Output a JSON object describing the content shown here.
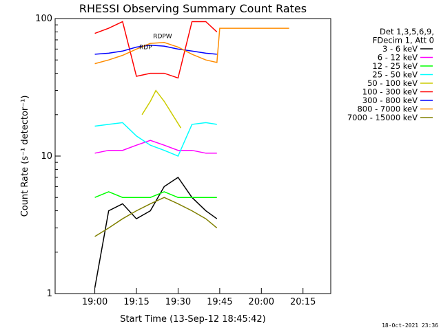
{
  "chart_data": {
    "type": "line",
    "title": "RHESSI Observing Summary Count Rates",
    "xlabel": "Start Time (13-Sep-12 18:45:42)",
    "ylabel": "Count Rate (s⁻¹ detector⁻¹)",
    "y_scale": "log",
    "ylim": [
      1,
      100
    ],
    "xlim": [
      "18:45:42",
      "20:25:00"
    ],
    "y_ticks": [
      {
        "value": 1,
        "label": "1"
      },
      {
        "value": 10,
        "label": "10"
      },
      {
        "value": 100,
        "label": "100"
      }
    ],
    "x_ticks": [
      {
        "value": "19:00",
        "label": "19:00"
      },
      {
        "value": "19:15",
        "label": "19:15"
      },
      {
        "value": "19:30",
        "label": "19:30"
      },
      {
        "value": "19:45",
        "label": "19:45"
      },
      {
        "value": "20:00",
        "label": "20:00"
      },
      {
        "value": "20:15",
        "label": "20:15"
      }
    ],
    "legend_header": [
      "Det 1,3,5,6,9,",
      "FDecim 1, Att 0"
    ],
    "legend_position": "right",
    "series": [
      {
        "name": "3 - 6 keV",
        "color": "#000000",
        "x": [
          "19:00",
          "19:05",
          "19:10",
          "19:15",
          "19:20",
          "19:25",
          "19:30",
          "19:35",
          "19:40",
          "19:44"
        ],
        "y": [
          1.1,
          4.0,
          4.5,
          3.5,
          4.0,
          6.0,
          7.0,
          5.0,
          4.0,
          3.5
        ]
      },
      {
        "name": "6 - 12 keV",
        "color": "#ff00ff",
        "x": [
          "19:00",
          "19:05",
          "19:10",
          "19:15",
          "19:20",
          "19:25",
          "19:30",
          "19:35",
          "19:40",
          "19:44"
        ],
        "y": [
          10.5,
          11.0,
          11.0,
          12.0,
          13.0,
          12.0,
          11.0,
          11.0,
          10.5,
          10.5
        ]
      },
      {
        "name": "12 - 25 keV",
        "color": "#00ff00",
        "x": [
          "19:00",
          "19:05",
          "19:10",
          "19:15",
          "19:20",
          "19:25",
          "19:30",
          "19:35",
          "19:40",
          "19:44"
        ],
        "y": [
          5.0,
          5.5,
          5.0,
          5.0,
          5.0,
          5.5,
          5.0,
          5.0,
          5.0,
          5.0
        ]
      },
      {
        "name": "25 - 50 keV",
        "color": "#00ffff",
        "x": [
          "19:00",
          "19:05",
          "19:10",
          "19:15",
          "19:20",
          "19:25",
          "19:30",
          "19:35",
          "19:40",
          "19:44"
        ],
        "y": [
          16.5,
          17.0,
          17.5,
          14.0,
          12.0,
          11.0,
          10.0,
          17.0,
          17.5,
          17.0
        ]
      },
      {
        "name": "50 - 100 keV",
        "color": "#cccc00",
        "x": [
          "19:17",
          "19:20",
          "19:22",
          "19:25",
          "19:28",
          "19:31"
        ],
        "y": [
          20.0,
          25.0,
          30.0,
          25.0,
          20.0,
          16.0
        ]
      },
      {
        "name": "100 - 300 keV",
        "color": "#ff0000",
        "x": [
          "19:00",
          "19:05",
          "19:10",
          "19:15",
          "19:20",
          "19:25",
          "19:30",
          "19:35",
          "19:40",
          "19:44"
        ],
        "y": [
          78.0,
          85.0,
          95.0,
          38.0,
          40.0,
          40.0,
          37.0,
          95.0,
          95.0,
          80.0
        ]
      },
      {
        "name": "300 - 800 keV",
        "color": "#0000ff",
        "x": [
          "19:00",
          "19:05",
          "19:10",
          "19:15",
          "19:20",
          "19:25",
          "19:30",
          "19:35",
          "19:40",
          "19:44"
        ],
        "y": [
          55.0,
          56.0,
          58.0,
          62.0,
          64.0,
          63.0,
          60.0,
          58.0,
          56.0,
          55.0
        ]
      },
      {
        "name": "800 - 7000 keV",
        "color": "#ff8c00",
        "x": [
          "19:00",
          "19:05",
          "19:10",
          "19:15",
          "19:20",
          "19:25",
          "19:30",
          "19:35",
          "19:40",
          "19:44",
          "19:45",
          "20:10"
        ],
        "y": [
          47.0,
          50.0,
          54.0,
          60.0,
          66.0,
          67.0,
          62.0,
          55.0,
          50.0,
          48.0,
          85.0,
          85.0
        ]
      },
      {
        "name": "7000 - 15000 keV",
        "color": "#808000",
        "x": [
          "19:00",
          "19:05",
          "19:10",
          "19:15",
          "19:20",
          "19:25",
          "19:30",
          "19:35",
          "19:40",
          "19:44"
        ],
        "y": [
          2.6,
          3.0,
          3.5,
          4.0,
          4.5,
          5.0,
          4.5,
          4.0,
          3.5,
          3.0
        ]
      }
    ],
    "annotations": [
      "RDP",
      "RDPW"
    ],
    "footer_timestamp": "18-Oct-2021 23:36"
  }
}
